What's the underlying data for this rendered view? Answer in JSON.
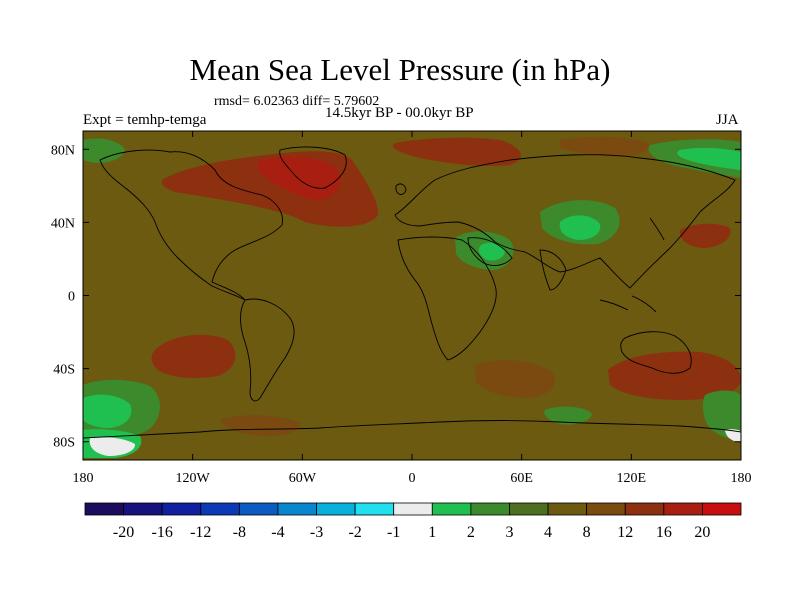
{
  "title": "Mean Sea Level Pressure (in hPa)",
  "stats": "rmsd= 6.02363  diff= 5.79602",
  "left_label": "Expt = temhp-temga",
  "center_label": "14.5kyr BP - 00.0kyr BP",
  "right_label": "JJA",
  "map": {
    "lat_ticks": [
      {
        "label": "80N",
        "lat": 80
      },
      {
        "label": "40N",
        "lat": 40
      },
      {
        "label": "0",
        "lat": 0
      },
      {
        "label": "40S",
        "lat": -40
      },
      {
        "label": "80S",
        "lat": -80
      }
    ],
    "lon_ticks": [
      {
        "label": "180",
        "lon": -180
      },
      {
        "label": "120W",
        "lon": -120
      },
      {
        "label": "60W",
        "lon": -60
      },
      {
        "label": "0",
        "lon": 0
      },
      {
        "label": "60E",
        "lon": 60
      },
      {
        "label": "120E",
        "lon": 120
      },
      {
        "label": "180",
        "lon": 180
      }
    ],
    "lat_range": [
      -90,
      90
    ],
    "lon_range": [
      -180,
      180
    ],
    "background_color": "#6b5a10"
  },
  "colorbar": {
    "colors": [
      "#1b0c5c",
      "#16137f",
      "#1020a0",
      "#0a3ab5",
      "#0a5cc2",
      "#0a86cf",
      "#0ab0dd",
      "#20e0ee",
      "#ececec",
      "#20c050",
      "#3c8a2c",
      "#4c7020",
      "#6b5a10",
      "#7a4a10",
      "#8c3010",
      "#a81e10",
      "#c80e0e"
    ],
    "labels": [
      "-20",
      "-16",
      "-12",
      "-8",
      "-4",
      "-3",
      "-2",
      "-1",
      "1",
      "2",
      "3",
      "4",
      "8",
      "12",
      "16",
      "20"
    ]
  }
}
